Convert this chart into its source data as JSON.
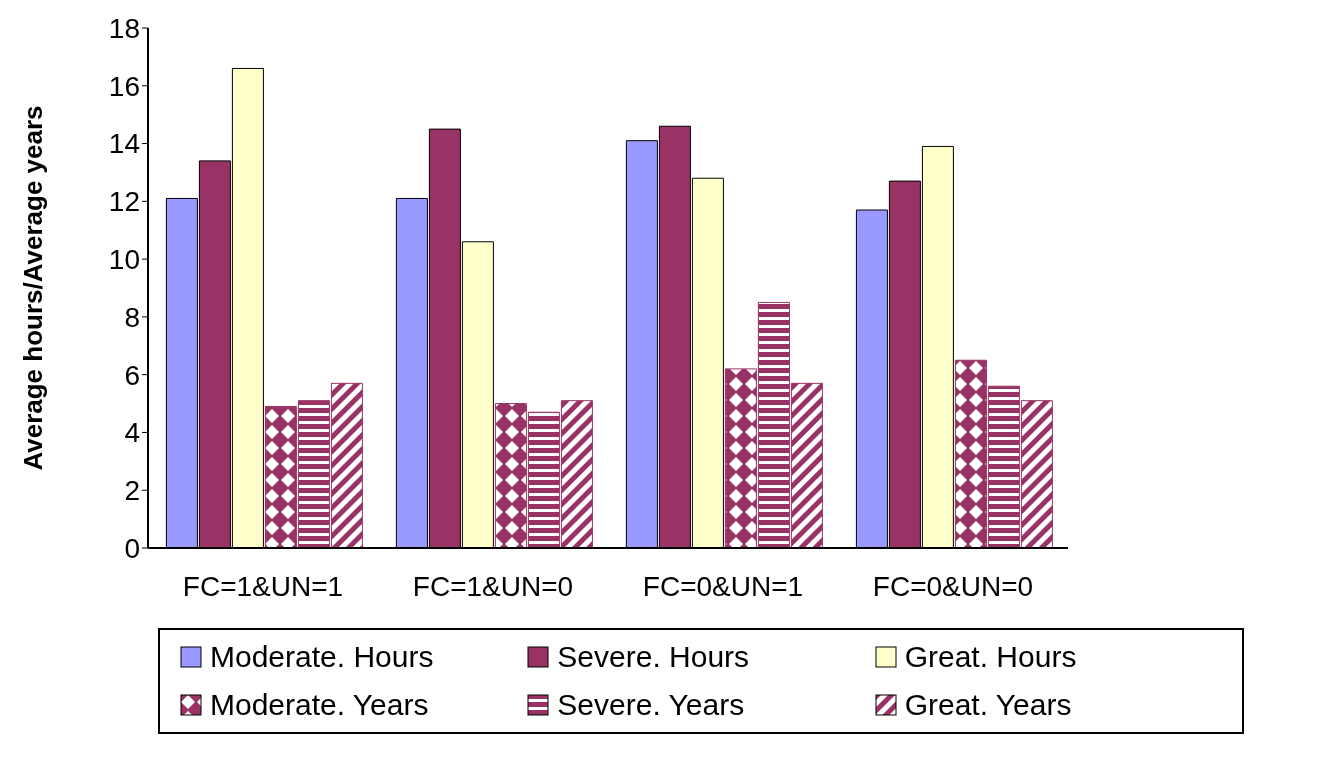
{
  "chart_data": {
    "type": "bar",
    "ylabel": "Average hours/Average years",
    "categories": [
      "FC=1&UN=1",
      "FC=1&UN=0",
      "FC=0&UN=1",
      "FC=0&UN=0"
    ],
    "series": [
      {
        "name": "Moderate. Hours",
        "color": "#9999ff",
        "values": [
          12.1,
          12.1,
          14.1,
          11.7
        ]
      },
      {
        "name": "Severe. Hours",
        "color": "#993366",
        "values": [
          13.4,
          14.5,
          14.6,
          12.7
        ]
      },
      {
        "name": "Great. Hours",
        "color": "#ffffcc",
        "values": [
          16.6,
          10.6,
          12.8,
          13.9
        ]
      },
      {
        "name": "Moderate. Years",
        "color": "#993366",
        "values": [
          4.9,
          5.0,
          6.2,
          6.5
        ]
      },
      {
        "name": "Severe. Years",
        "color": "#993366",
        "values": [
          5.1,
          4.7,
          8.5,
          5.6
        ]
      },
      {
        "name": "Great. Years",
        "color": "#993366",
        "values": [
          5.7,
          5.1,
          5.7,
          5.1
        ]
      }
    ],
    "ylim": [
      0,
      18
    ],
    "yticks": [
      0,
      2,
      4,
      6,
      8,
      10,
      12,
      14,
      16,
      18
    ],
    "grid": false,
    "legend": "bottom"
  }
}
